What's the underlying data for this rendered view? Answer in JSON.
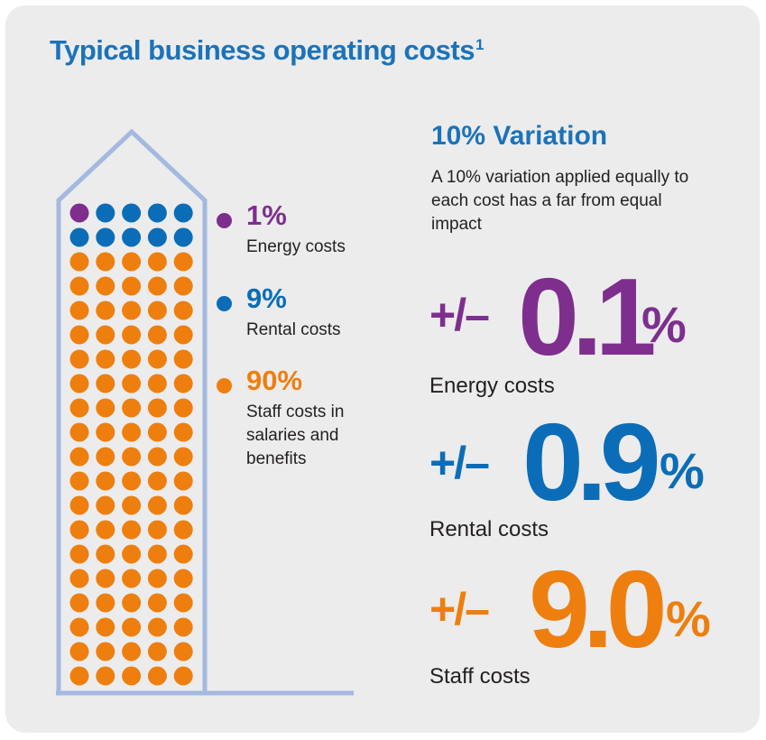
{
  "title": "Typical business operating costs",
  "title_footnote": "1",
  "colors": {
    "energy": "#7e2f8e",
    "rental": "#0b6db7",
    "staff": "#ee7f0e",
    "building": "#a3b9e0",
    "title": "#1b73b9"
  },
  "waffle": {
    "total_dots": 100,
    "columns": 5,
    "energy_dots": 1,
    "rental_dots": 9,
    "staff_dots": 90
  },
  "legend": [
    {
      "key": "energy",
      "percent": "1%",
      "label": "Energy costs"
    },
    {
      "key": "rental",
      "percent": "9%",
      "label": "Rental costs"
    },
    {
      "key": "staff",
      "percent": "90%",
      "label": "Staff costs in salaries and benefits"
    }
  ],
  "variation": {
    "title": "10% Variation",
    "description": "A 10% variation applied equally to each cost has a far from equal impact"
  },
  "impacts": [
    {
      "key": "energy",
      "sign": "+/–",
      "value": "0.1",
      "unit": "%",
      "label": "Energy costs"
    },
    {
      "key": "rental",
      "sign": "+/–",
      "value": "0.9",
      "unit": "%",
      "label": "Rental costs"
    },
    {
      "key": "staff",
      "sign": "+/–",
      "value": "9.0",
      "unit": "%",
      "label": "Staff costs"
    }
  ]
}
